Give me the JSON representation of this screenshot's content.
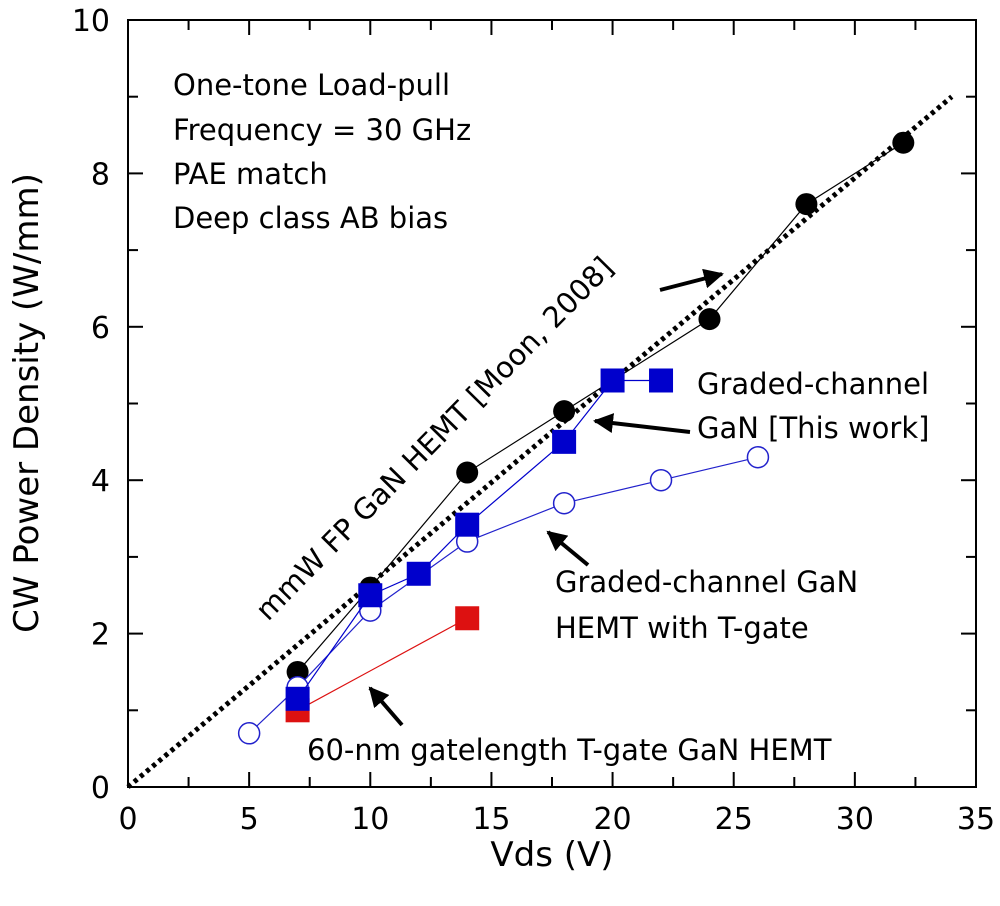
{
  "chart_data": {
    "type": "scatter",
    "xlabel": "Vds (V)",
    "ylabel": "CW Power Density (W/mm)",
    "xlim": [
      0,
      35
    ],
    "ylim": [
      0,
      10
    ],
    "x_ticks": [
      0,
      5,
      10,
      15,
      20,
      25,
      30,
      35
    ],
    "y_ticks": [
      0,
      2,
      4,
      6,
      8,
      10
    ],
    "grid": false,
    "conditions": [
      "One-tone Load-pull",
      "Frequency = 30 GHz",
      "PAE match",
      "Deep class AB bias"
    ],
    "reference_line": {
      "label": "mmW FP GaN HEMT [Moon, 2008]",
      "color": "#000000",
      "style": "dotted",
      "x": [
        0,
        34
      ],
      "y": [
        0,
        9
      ]
    },
    "series": [
      {
        "marker": "circle-filled",
        "color": "#000000",
        "x": [
          7,
          10,
          14,
          18,
          24,
          28,
          32
        ],
        "y": [
          1.5,
          2.6,
          4.1,
          4.9,
          6.1,
          7.6,
          8.4
        ]
      },
      {
        "name": "60-nm gatelength T-gate GaN HEMT",
        "marker": "square-filled",
        "color": "#dd1111",
        "x": [
          7,
          14
        ],
        "y": [
          1.0,
          2.2
        ]
      },
      {
        "name": "Graded-channel GaN HEMT with T-gate",
        "marker": "circle-open",
        "color": "#2222cc",
        "x": [
          5,
          7,
          10,
          14,
          18,
          22,
          26
        ],
        "y": [
          0.7,
          1.3,
          2.3,
          3.2,
          3.7,
          4.0,
          4.3
        ]
      },
      {
        "name": "Graded-channel GaN [This work]",
        "marker": "square-filled",
        "color": "#0000cc",
        "x": [
          7,
          10,
          12,
          14,
          18,
          20,
          22
        ],
        "y": [
          1.15,
          2.5,
          2.78,
          3.42,
          4.5,
          5.3,
          5.3
        ]
      }
    ],
    "annotations": [
      {
        "lines": [
          "Graded-channel",
          "GaN [This work]"
        ]
      },
      {
        "lines": [
          "Graded-channel GaN",
          "HEMT with T-gate"
        ]
      },
      {
        "lines": [
          "60-nm gatelength T-gate GaN HEMT"
        ]
      }
    ]
  }
}
